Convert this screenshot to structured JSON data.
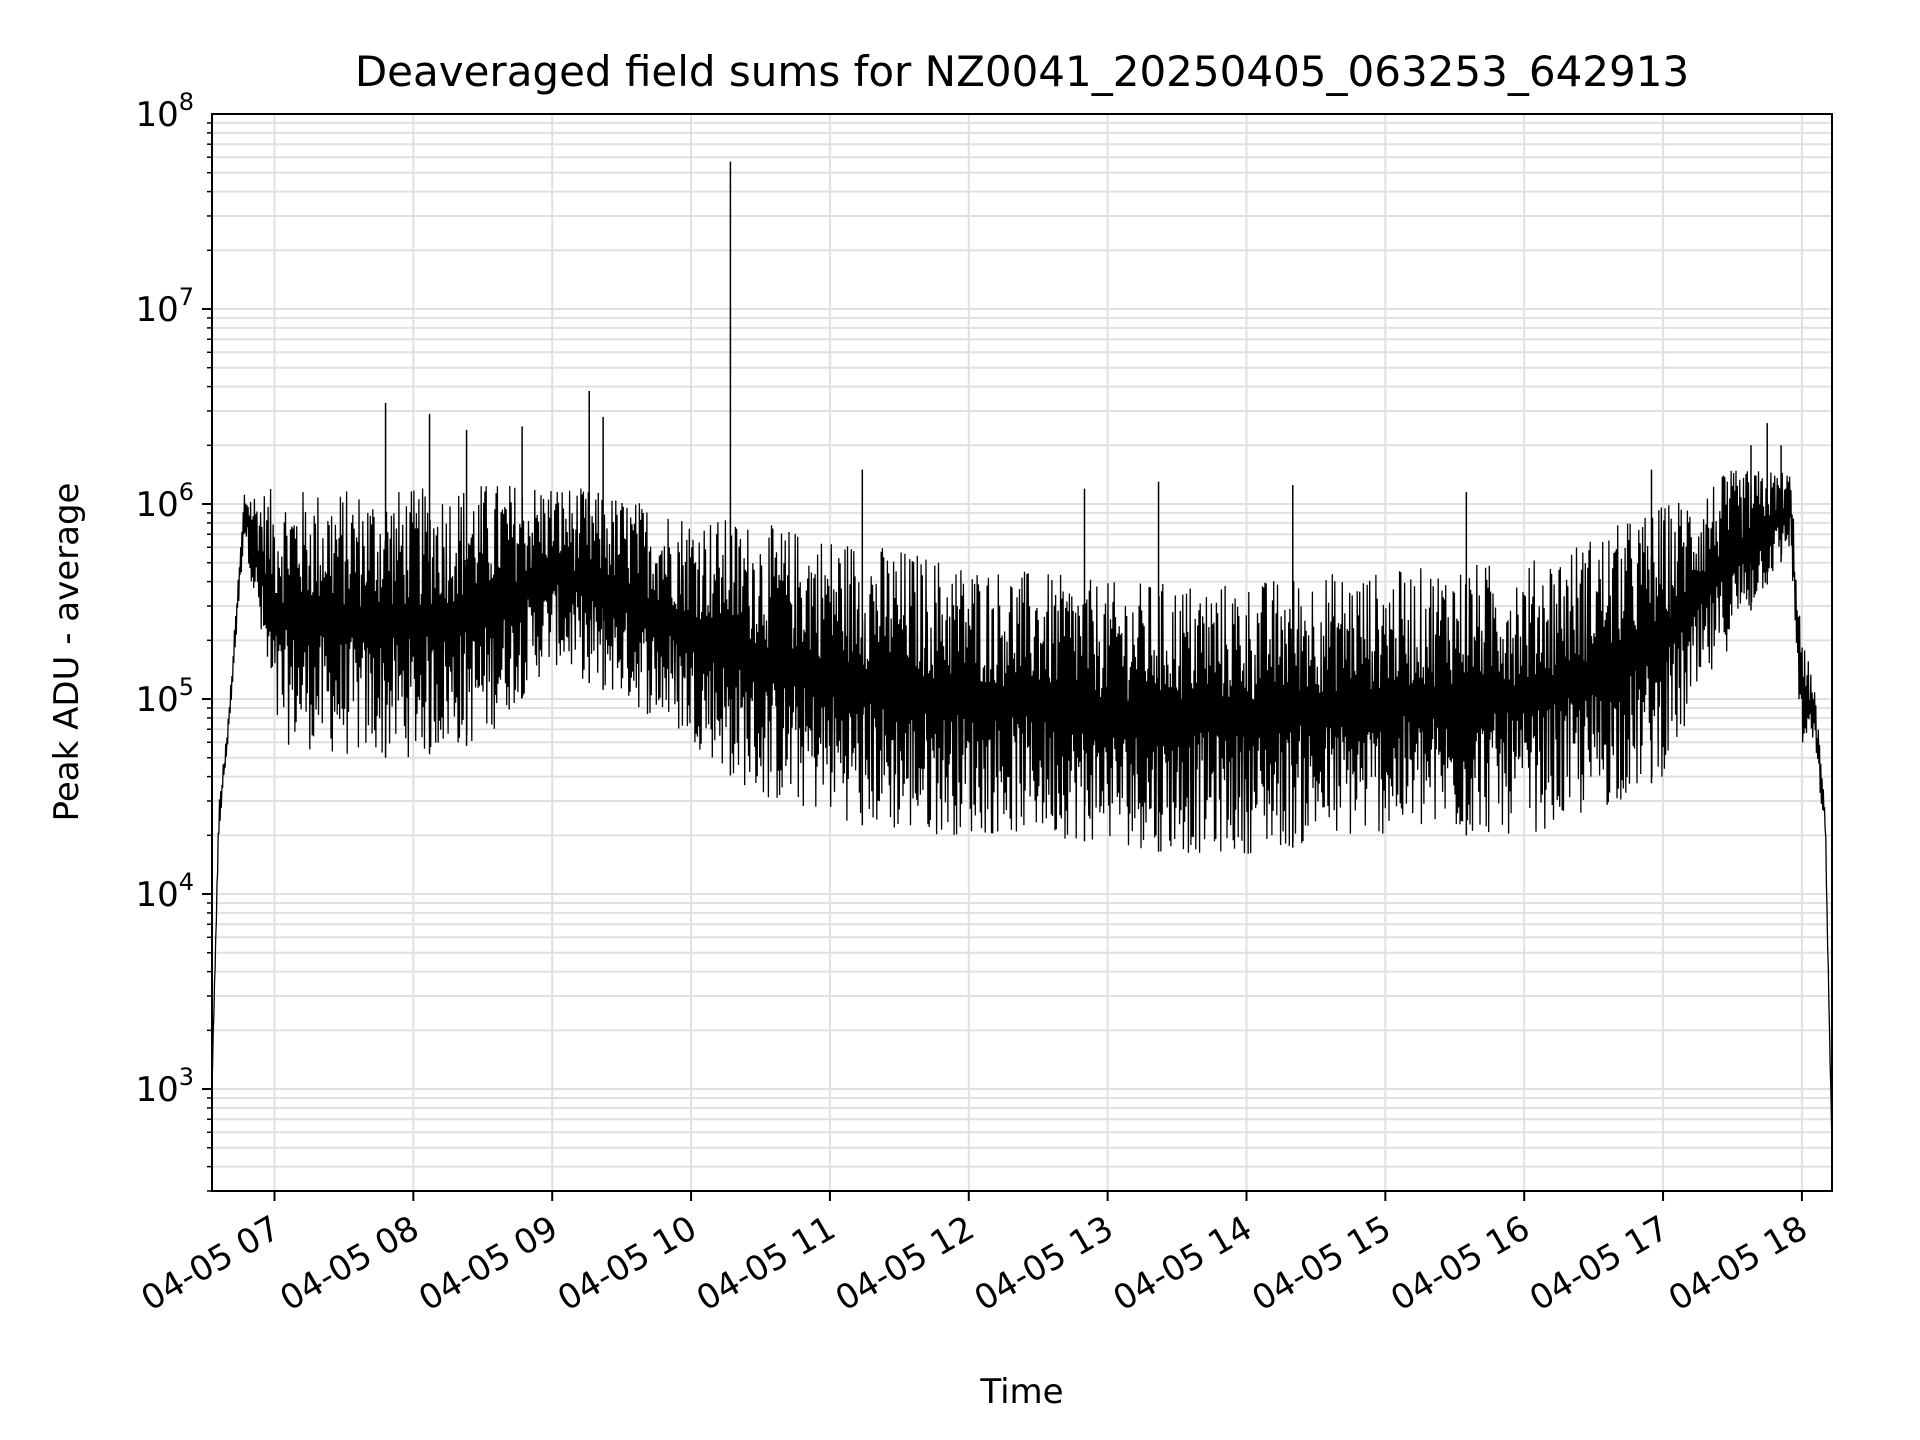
{
  "chart_data": {
    "type": "line",
    "title": "Deaveraged field sums for NZ0041_20250405_063253_642913",
    "xlabel": "Time",
    "ylabel": "Peak ADU - average",
    "yscale": "log",
    "ylim": [
      300,
      100000000
    ],
    "xlim": [
      "04-05 06:33",
      "04-05 18:13"
    ],
    "grid": true,
    "line_color": "#000000",
    "grid_color": "#e0e0e0",
    "x_ticks": [
      "04-05 07",
      "04-05 08",
      "04-05 09",
      "04-05 10",
      "04-05 11",
      "04-05 12",
      "04-05 13",
      "04-05 14",
      "04-05 15",
      "04-05 16",
      "04-05 17",
      "04-05 18"
    ],
    "y_ticks": [
      {
        "base": "10",
        "exp": "3",
        "value": 1000
      },
      {
        "base": "10",
        "exp": "4",
        "value": 10000
      },
      {
        "base": "10",
        "exp": "5",
        "value": 100000
      },
      {
        "base": "10",
        "exp": "6",
        "value": 1000000
      },
      {
        "base": "10",
        "exp": "7",
        "value": 10000000
      },
      {
        "base": "10",
        "exp": "8",
        "value": 100000000
      }
    ],
    "series": [
      {
        "envelope": [
          {
            "x": "04-05 06:33",
            "y_high": 1100,
            "y_low": 1000
          },
          {
            "x": "04-05 06:36",
            "y_high": 30000,
            "y_low": 20000
          },
          {
            "x": "04-05 06:40",
            "y_high": 80000,
            "y_low": 60000
          },
          {
            "x": "04-05 06:47",
            "y_high": 1200000,
            "y_low": 700000
          },
          {
            "x": "04-05 07:00",
            "y_high": 1200000,
            "y_low": 60000
          },
          {
            "x": "04-05 07:30",
            "y_high": 1200000,
            "y_low": 50000
          },
          {
            "x": "04-05 08:00",
            "y_high": 1200000,
            "y_low": 50000
          },
          {
            "x": "04-05 08:30",
            "y_high": 1300000,
            "y_low": 60000
          },
          {
            "x": "04-05 09:00",
            "y_high": 1300000,
            "y_low": 150000
          },
          {
            "x": "04-05 09:30",
            "y_high": 1100000,
            "y_low": 100000
          },
          {
            "x": "04-05 10:00",
            "y_high": 900000,
            "y_low": 60000
          },
          {
            "x": "04-05 10:30",
            "y_high": 800000,
            "y_low": 30000
          },
          {
            "x": "04-05 11:00",
            "y_high": 700000,
            "y_low": 25000
          },
          {
            "x": "04-05 11:30",
            "y_high": 600000,
            "y_low": 20000
          },
          {
            "x": "04-05 12:00",
            "y_high": 500000,
            "y_low": 20000
          },
          {
            "x": "04-05 12:30",
            "y_high": 450000,
            "y_low": 20000
          },
          {
            "x": "04-05 13:00",
            "y_high": 400000,
            "y_low": 18000
          },
          {
            "x": "04-05 13:30",
            "y_high": 400000,
            "y_low": 16000
          },
          {
            "x": "04-05 14:00",
            "y_high": 400000,
            "y_low": 16000
          },
          {
            "x": "04-05 14:30",
            "y_high": 450000,
            "y_low": 18000
          },
          {
            "x": "04-05 15:00",
            "y_high": 450000,
            "y_low": 20000
          },
          {
            "x": "04-05 15:30",
            "y_high": 500000,
            "y_low": 20000
          },
          {
            "x": "04-05 16:00",
            "y_high": 500000,
            "y_low": 20000
          },
          {
            "x": "04-05 16:30",
            "y_high": 700000,
            "y_low": 25000
          },
          {
            "x": "04-05 17:00",
            "y_high": 1000000,
            "y_low": 40000
          },
          {
            "x": "04-05 17:30",
            "y_high": 1500000,
            "y_low": 200000
          },
          {
            "x": "04-05 17:55",
            "y_high": 1500000,
            "y_low": 600000
          },
          {
            "x": "04-05 18:00",
            "y_high": 200000,
            "y_low": 50000
          },
          {
            "x": "04-05 18:05",
            "y_high": 130000,
            "y_low": 60000
          },
          {
            "x": "04-05 18:10",
            "y_high": 30000,
            "y_low": 20000
          },
          {
            "x": "04-05 18:13",
            "y_high": 500,
            "y_low": 500
          }
        ],
        "spikes": [
          {
            "x": "04-05 07:48",
            "y": 3300000
          },
          {
            "x": "04-05 08:07",
            "y": 2900000
          },
          {
            "x": "04-05 08:23",
            "y": 2400000
          },
          {
            "x": "04-05 08:47",
            "y": 2500000
          },
          {
            "x": "04-05 09:16",
            "y": 3800000
          },
          {
            "x": "04-05 09:22",
            "y": 2800000
          },
          {
            "x": "04-05 10:17",
            "y": 57000000
          },
          {
            "x": "04-05 11:14",
            "y": 1500000
          },
          {
            "x": "04-05 12:50",
            "y": 1200000
          },
          {
            "x": "04-05 13:22",
            "y": 1300000
          },
          {
            "x": "04-05 14:20",
            "y": 1250000
          },
          {
            "x": "04-05 15:35",
            "y": 1150000
          },
          {
            "x": "04-05 16:55",
            "y": 1500000
          },
          {
            "x": "04-05 17:38",
            "y": 2000000
          },
          {
            "x": "04-05 17:45",
            "y": 2600000
          },
          {
            "x": "04-05 17:51",
            "y": 2000000
          }
        ]
      }
    ]
  }
}
